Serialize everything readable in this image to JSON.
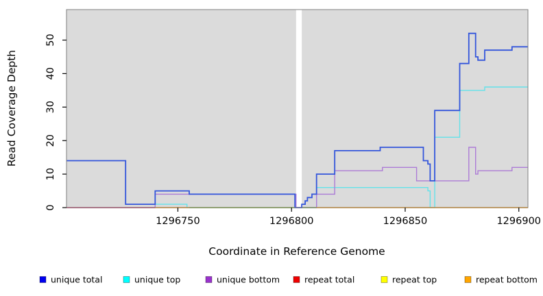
{
  "chart_data": {
    "type": "line",
    "step": true,
    "title": "",
    "xlabel": "Coordinate in Reference Genome",
    "ylabel": "Read Coverage Depth",
    "xlim": [
      1296701,
      1296904
    ],
    "ylim": [
      0,
      59
    ],
    "x_ticks": [
      1296750,
      1296800,
      1296850,
      1296900
    ],
    "y_ticks": [
      0,
      10,
      20,
      30,
      40,
      50
    ],
    "grid": false,
    "plot_bg": "#dbdbdb",
    "no_data_gap": [
      1296802,
      1296804.5
    ],
    "series": [
      {
        "name": "unique total",
        "color": "#3355db",
        "width": 1.8,
        "points": [
          [
            1296701,
            14
          ],
          [
            1296727,
            1
          ],
          [
            1296740,
            5
          ],
          [
            1296755,
            4
          ],
          [
            1296801.5,
            0
          ],
          [
            1296804.5,
            1
          ],
          [
            1296806,
            2
          ],
          [
            1296807,
            3
          ],
          [
            1296809,
            4
          ],
          [
            1296811,
            10
          ],
          [
            1296819,
            17
          ],
          [
            1296839,
            18
          ],
          [
            1296858,
            14
          ],
          [
            1296860,
            13
          ],
          [
            1296861,
            8
          ],
          [
            1296863,
            29
          ],
          [
            1296874,
            43
          ],
          [
            1296878,
            52
          ],
          [
            1296881,
            45
          ],
          [
            1296882,
            44
          ],
          [
            1296885,
            47
          ],
          [
            1296897,
            48
          ],
          [
            1296904,
            48
          ]
        ]
      },
      {
        "name": "unique top",
        "color": "#63e2e9",
        "width": 1.4,
        "points": [
          [
            1296701,
            0
          ],
          [
            1296740,
            1
          ],
          [
            1296754,
            0
          ],
          [
            1296811,
            6
          ],
          [
            1296860,
            5
          ],
          [
            1296861,
            0
          ],
          [
            1296863,
            21
          ],
          [
            1296874,
            35
          ],
          [
            1296885,
            36
          ],
          [
            1296904,
            36
          ]
        ]
      },
      {
        "name": "unique bottom",
        "color": "#ac7bd6",
        "width": 1.4,
        "points": [
          [
            1296701,
            0
          ],
          [
            1296740,
            4
          ],
          [
            1296802,
            0
          ],
          [
            1296811,
            4
          ],
          [
            1296819,
            11
          ],
          [
            1296840,
            12
          ],
          [
            1296855,
            8
          ],
          [
            1296878,
            18
          ],
          [
            1296881,
            10
          ],
          [
            1296882,
            11
          ],
          [
            1296897,
            12
          ],
          [
            1296904,
            12
          ]
        ]
      },
      {
        "name": "repeat total",
        "color": "#dc5670",
        "width": 1.4,
        "points": [
          [
            1296701,
            0
          ],
          [
            1296740,
            0
          ]
        ]
      },
      {
        "name": "repeat top",
        "color": "#eded4f",
        "width": 1.4,
        "points": [
          [
            1296755,
            0
          ],
          [
            1296802,
            0
          ]
        ]
      },
      {
        "name": "repeat bottom",
        "color": "#ffa41e",
        "width": 1.6,
        "points": [
          [
            1296740,
            0
          ],
          [
            1296904,
            0
          ]
        ]
      }
    ],
    "baseline_segments": [
      {
        "color": "#dc5670",
        "from": 1296701,
        "to": 1296740
      },
      {
        "color": "#ffa41e",
        "from": 1296740,
        "to": 1296755
      },
      {
        "color": "#57b86e",
        "from": 1296755,
        "to": 1296802
      },
      {
        "color": "#57b86e",
        "from": 1296804.5,
        "to": 1296811
      },
      {
        "color": "#ffa41e",
        "from": 1296811,
        "to": 1296904
      }
    ],
    "legend_position": "bottom",
    "legend": [
      {
        "label": "unique total",
        "color": "#0000ee"
      },
      {
        "label": "unique top",
        "color": "#00ffff"
      },
      {
        "label": "unique bottom",
        "color": "#9932cc"
      },
      {
        "label": "repeat total",
        "color": "#ee0000"
      },
      {
        "label": "repeat top",
        "color": "#ffff00"
      },
      {
        "label": "repeat bottom",
        "color": "#ffa500"
      }
    ]
  }
}
